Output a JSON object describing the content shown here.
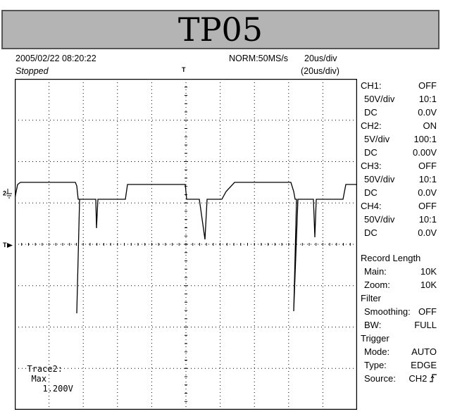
{
  "title": "TP05",
  "header": {
    "datetime": "2005/02/22  08:20:22",
    "status": "Stopped",
    "acq_mode": "NORM:50MS/s",
    "timebase": "20us/div",
    "zoom_timebase": "(20us/div)"
  },
  "markers": {
    "trigger_pos": "T",
    "channel": "2",
    "trigger_level": "T"
  },
  "readout": {
    "label": "Trace2:",
    "measure": "Max",
    "value": "1.200V"
  },
  "channels": [
    {
      "name": "CH1:",
      "state": "OFF",
      "scale": "50V/div",
      "probe": "10:1",
      "coupling": "DC",
      "offset": "0.0V"
    },
    {
      "name": "CH2:",
      "state": "ON",
      "scale": "5V/div",
      "probe": "100:1",
      "coupling": "DC",
      "offset": "0.00V"
    },
    {
      "name": "CH3:",
      "state": "OFF",
      "scale": "50V/div",
      "probe": "10:1",
      "coupling": "DC",
      "offset": "0.0V"
    },
    {
      "name": "CH4:",
      "state": "OFF",
      "scale": "50V/div",
      "probe": "10:1",
      "coupling": "DC",
      "offset": "0.0V"
    }
  ],
  "record": {
    "heading": "Record Length",
    "main_label": "Main:",
    "main_value": "10K",
    "zoom_label": "Zoom:",
    "zoom_value": "10K"
  },
  "filter": {
    "heading": "Filter",
    "smoothing_label": "Smoothing:",
    "smoothing_value": "OFF",
    "bw_label": "BW:",
    "bw_value": "FULL"
  },
  "trigger": {
    "heading": "Trigger",
    "mode_label": "Mode:",
    "mode_value": "AUTO",
    "type_label": "Type:",
    "type_value": "EDGE",
    "source_label": "Source:",
    "source_value": "CH2",
    "slope_icon": "rising-edge-icon"
  },
  "colors": {
    "trace": "#000000",
    "grid": "#000000",
    "title_bg": "#b4b4b4"
  }
}
